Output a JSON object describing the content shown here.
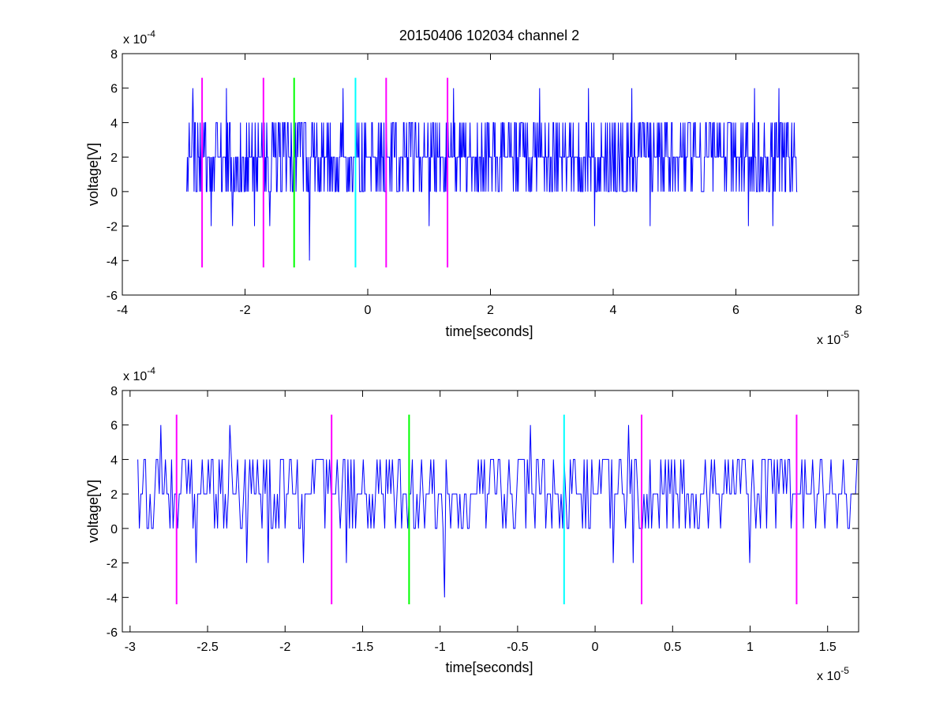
{
  "figure": {
    "title": "20150406 102034 channel 2"
  },
  "chart_data": [
    {
      "type": "line",
      "title": "20150406 102034 channel 2",
      "xlabel": "time[seconds]",
      "ylabel": "voltage[V]",
      "x_exponent_label": "x 10",
      "x_exponent": "-5",
      "y_exponent_label": "x 10",
      "y_exponent": "-4",
      "xlim": [
        -4,
        8
      ],
      "ylim": [
        -6,
        8
      ],
      "xticks": [
        -4,
        -2,
        0,
        2,
        4,
        6,
        8
      ],
      "xtick_labels": [
        "-4",
        "-2",
        "0",
        "2",
        "4",
        "6",
        "8"
      ],
      "yticks": [
        -6,
        -4,
        -2,
        0,
        2,
        4,
        6,
        8
      ],
      "ytick_labels": [
        "-6",
        "-4",
        "-2",
        "0",
        "2",
        "4",
        "6",
        "8"
      ],
      "grid": false,
      "signal": {
        "color": "#0000ff",
        "x_start": -2.95,
        "x_end": 7.0,
        "levels": [
          -4,
          -2,
          0,
          2,
          4,
          6
        ],
        "typical_range": [
          0,
          4
        ],
        "spikes": [
          {
            "x": -2.85,
            "y": 6
          },
          {
            "x": -2.55,
            "y": -2
          },
          {
            "x": -2.3,
            "y": 6
          },
          {
            "x": -2.2,
            "y": -2
          },
          {
            "x": -1.85,
            "y": -2
          },
          {
            "x": -1.6,
            "y": -2
          },
          {
            "x": -0.95,
            "y": -4
          },
          {
            "x": -0.4,
            "y": 6
          },
          {
            "x": 1.0,
            "y": -2
          },
          {
            "x": 1.4,
            "y": 6
          },
          {
            "x": 2.8,
            "y": 6
          },
          {
            "x": 3.6,
            "y": 6
          },
          {
            "x": 3.7,
            "y": -2
          },
          {
            "x": 4.3,
            "y": 6
          },
          {
            "x": 4.6,
            "y": -2
          },
          {
            "x": 6.2,
            "y": -2
          },
          {
            "x": 6.3,
            "y": 6
          },
          {
            "x": 6.6,
            "y": -2
          },
          {
            "x": 6.7,
            "y": 6
          }
        ]
      },
      "markers": [
        {
          "x": -2.7,
          "color": "#ff00ff"
        },
        {
          "x": -1.7,
          "color": "#ff00ff"
        },
        {
          "x": -1.2,
          "color": "#00ff00"
        },
        {
          "x": -0.2,
          "color": "#00ffff"
        },
        {
          "x": 0.3,
          "color": "#ff00ff"
        },
        {
          "x": 1.3,
          "color": "#ff00ff"
        }
      ],
      "marker_range": [
        -4.4,
        6.6
      ]
    },
    {
      "type": "line",
      "title": "",
      "xlabel": "time[seconds]",
      "ylabel": "voltage[V]",
      "x_exponent_label": "x 10",
      "x_exponent": "-5",
      "y_exponent_label": "x 10",
      "y_exponent": "-4",
      "xlim": [
        -3.05,
        1.7
      ],
      "ylim": [
        -6,
        8
      ],
      "xticks": [
        -3,
        -2.5,
        -2,
        -1.5,
        -1,
        -0.5,
        0,
        0.5,
        1,
        1.5
      ],
      "xtick_labels": [
        "-3",
        "-2.5",
        "-2",
        "-1.5",
        "-1",
        "-0.5",
        "0",
        "0.5",
        "1",
        "1.5"
      ],
      "yticks": [
        -6,
        -4,
        -2,
        0,
        2,
        4,
        6,
        8
      ],
      "ytick_labels": [
        "-6",
        "-4",
        "-2",
        "0",
        "2",
        "4",
        "6",
        "8"
      ],
      "grid": false,
      "signal": {
        "color": "#0000ff",
        "x_start": -2.95,
        "x_end": 1.7,
        "levels": [
          -4,
          -2,
          0,
          2,
          4,
          6
        ],
        "typical_range": [
          0,
          4
        ],
        "spikes": [
          {
            "x": -2.8,
            "y": 6
          },
          {
            "x": -2.57,
            "y": -2
          },
          {
            "x": -2.36,
            "y": 6
          },
          {
            "x": -2.25,
            "y": -2
          },
          {
            "x": -2.11,
            "y": -2
          },
          {
            "x": -1.88,
            "y": -2
          },
          {
            "x": -1.6,
            "y": -2
          },
          {
            "x": -0.97,
            "y": -4
          },
          {
            "x": -0.42,
            "y": 6
          },
          {
            "x": 0.12,
            "y": -2
          },
          {
            "x": 0.22,
            "y": 6
          },
          {
            "x": 0.25,
            "y": -2
          },
          {
            "x": 1.0,
            "y": -2
          }
        ]
      },
      "markers": [
        {
          "x": -2.7,
          "color": "#ff00ff"
        },
        {
          "x": -1.7,
          "color": "#ff00ff"
        },
        {
          "x": -1.2,
          "color": "#00ff00"
        },
        {
          "x": -0.2,
          "color": "#00ffff"
        },
        {
          "x": 0.3,
          "color": "#ff00ff"
        },
        {
          "x": 1.3,
          "color": "#ff00ff"
        }
      ],
      "marker_range": [
        -4.4,
        6.6
      ]
    }
  ]
}
